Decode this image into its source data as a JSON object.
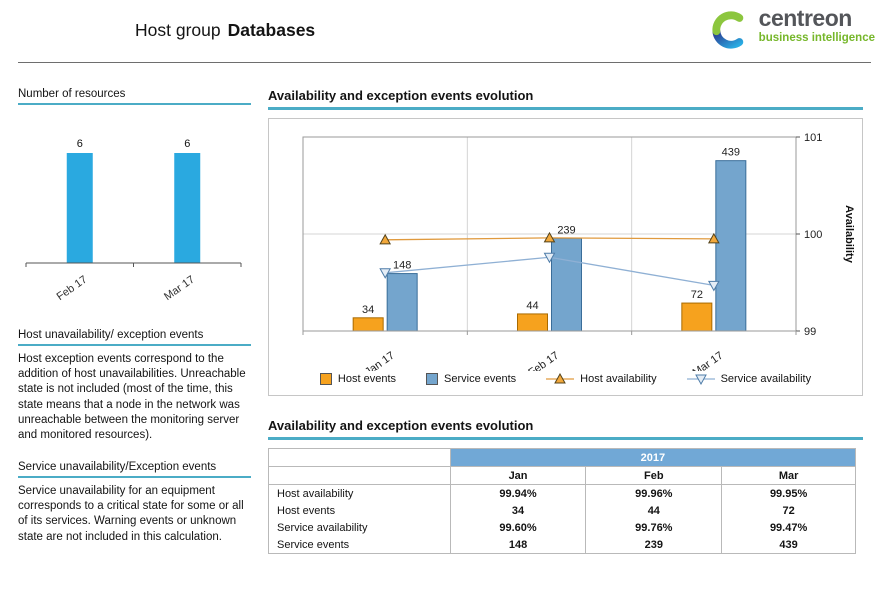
{
  "header": {
    "title_prefix": "Host group",
    "title_group": "Databases",
    "logo_wordmark": "centreon",
    "logo_tagline": "business intelligence"
  },
  "sidebar": {
    "resources_heading": "Number of resources",
    "host_heading": "Host unavailability/ exception events",
    "host_body": "Host exception events correspond to the addition of host unavailabilities. Unreachable state is not included (most of the time, this state means that a node in the network was unreachable between the monitoring server and monitored resources).",
    "service_heading": "Service unavailability/Exception events",
    "service_body": "Service unavailability for an equipment corresponds to a critical state for some or all of its services. Warning events or unknown state are not included in this calculation."
  },
  "main": {
    "chart_heading": "Availability and exception events evolution",
    "table_heading": "Availability and exception events evolution",
    "table": {
      "year": "2017",
      "columns": [
        "Jan",
        "Feb",
        "Mar"
      ],
      "rows": [
        {
          "label": "Host availability",
          "values": [
            "99.94%",
            "99.96%",
            "99.95%"
          ]
        },
        {
          "label": "Host events",
          "values": [
            "34",
            "44",
            "72"
          ]
        },
        {
          "label": "Service availability",
          "values": [
            "99.60%",
            "99.76%",
            "99.47%"
          ]
        },
        {
          "label": "Service events",
          "values": [
            "148",
            "239",
            "439"
          ]
        }
      ]
    }
  },
  "colors": {
    "accent_teal": "#4BACC6",
    "mini_bar_blue": "#2AA9E0",
    "host_events_orange": "#F6A21E",
    "service_events_blue": "#74A5CD",
    "host_availability_line": "#E09A3E",
    "service_availability_line": "#8FB0D4",
    "table_band_blue": "#71A8D6",
    "logo_green": "#8CC63E",
    "logo_blue": "#2176BC"
  },
  "chart_data": [
    {
      "type": "bar",
      "title": "Number of resources",
      "categories": [
        "Feb 17",
        "Mar 17"
      ],
      "values": [
        6,
        6
      ],
      "bar_color": "#2AA9E0",
      "ylim": [
        0,
        6
      ],
      "grid": false
    },
    {
      "type": "bar",
      "title": "Availability and exception events evolution",
      "categories": [
        "Jan 17",
        "Feb 17",
        "Mar 17"
      ],
      "series": [
        {
          "name": "Host events",
          "kind": "bar",
          "color": "#F6A21E",
          "stroke": "#A96A00",
          "values": [
            34,
            44,
            72
          ]
        },
        {
          "name": "Service events",
          "kind": "bar",
          "color": "#74A5CD",
          "stroke": "#3A6D99",
          "values": [
            148,
            239,
            439
          ]
        },
        {
          "name": "Host availability",
          "kind": "line",
          "color": "#E09A3E",
          "marker": "triangle-up",
          "marker_fill": "#F2A83B",
          "marker_stroke": "#54431B",
          "values": [
            99.94,
            99.96,
            99.95
          ]
        },
        {
          "name": "Service availability",
          "kind": "line",
          "color": "#8FB0D4",
          "marker": "triangle-down",
          "marker_fill": "#E4EDF6",
          "marker_stroke": "#4E7CA8",
          "values": [
            99.6,
            99.76,
            99.47
          ]
        }
      ],
      "y2label": "Availability",
      "y2lim": [
        99,
        101
      ],
      "y2ticks": [
        99,
        100,
        101
      ],
      "bar_axis_max": 500,
      "legend_position": "bottom",
      "grid": true
    }
  ]
}
